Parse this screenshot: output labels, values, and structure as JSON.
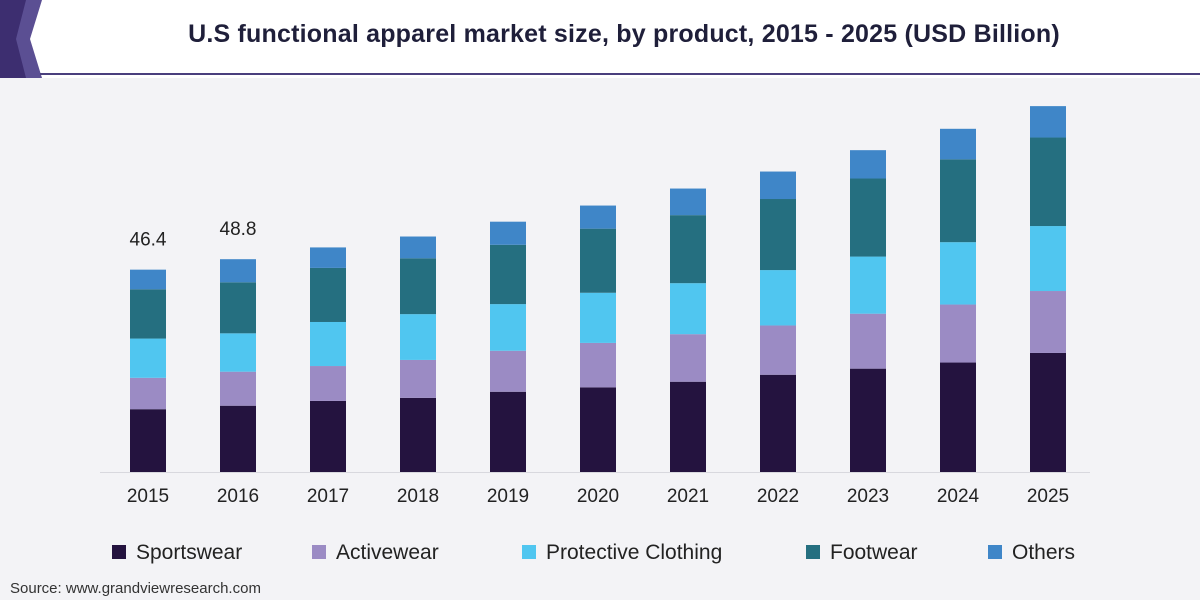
{
  "header": {
    "title": "U.S functional apparel market size, by product, 2015 - 2025 (USD Billion)"
  },
  "source": "Source: www.grandviewresearch.com",
  "chart_data": {
    "type": "bar",
    "stacked": true,
    "title": "U.S functional apparel market size, by product, 2015 - 2025 (USD Billion)",
    "xlabel": "",
    "ylabel": "",
    "ylim": [
      0,
      85
    ],
    "grid": false,
    "legend_position": "bottom",
    "categories": [
      "2015",
      "2016",
      "2017",
      "2018",
      "2019",
      "2020",
      "2021",
      "2022",
      "2023",
      "2024",
      "2025"
    ],
    "series": [
      {
        "name": "Sportswear",
        "color": "#24133f",
        "values": [
          14.4,
          15.2,
          16.3,
          17.0,
          18.4,
          19.4,
          20.7,
          22.3,
          23.7,
          25.1,
          27.3
        ]
      },
      {
        "name": "Activewear",
        "color": "#9b8bc4",
        "values": [
          7.2,
          7.8,
          8.0,
          8.7,
          9.4,
          10.2,
          10.9,
          11.3,
          12.6,
          13.3,
          14.2
        ]
      },
      {
        "name": "Protective Clothing",
        "color": "#50c6f0",
        "values": [
          9.0,
          8.8,
          10.1,
          10.5,
          10.7,
          11.5,
          11.7,
          12.7,
          13.1,
          14.3,
          14.9
        ]
      },
      {
        "name": "Footwear",
        "color": "#256f80",
        "values": [
          11.3,
          11.7,
          12.4,
          12.8,
          13.6,
          14.7,
          15.6,
          16.3,
          17.9,
          19.0,
          20.3
        ]
      },
      {
        "name": "Others",
        "color": "#3f86c8",
        "values": [
          4.5,
          5.3,
          4.7,
          5.0,
          5.3,
          5.3,
          6.1,
          6.3,
          6.5,
          7.0,
          7.2
        ]
      }
    ],
    "data_labels": [
      {
        "category": "2015",
        "text": "46.4"
      },
      {
        "category": "2016",
        "text": "48.8"
      }
    ]
  }
}
